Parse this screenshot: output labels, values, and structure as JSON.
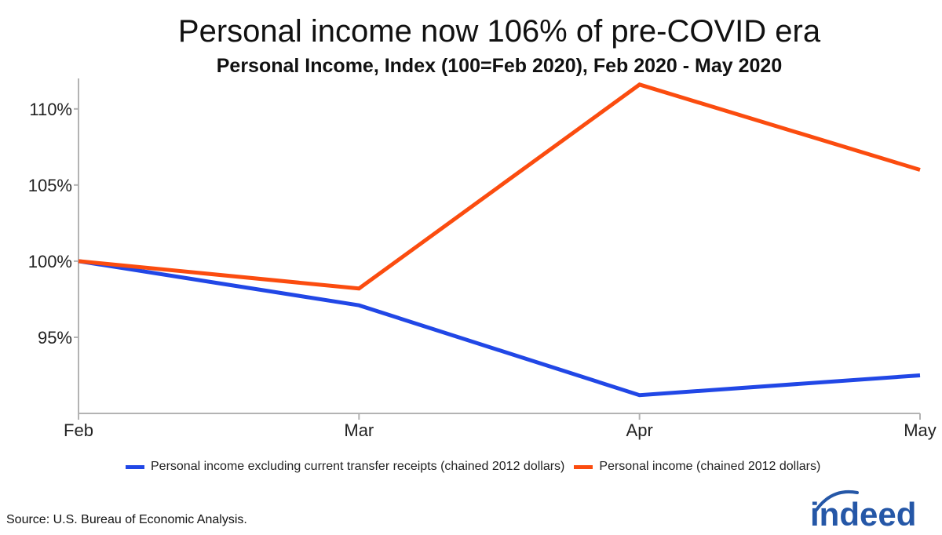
{
  "chart_data": {
    "type": "line",
    "title": "Personal income now 106% of pre-COVID era",
    "subtitle": "Personal Income, Index (100=Feb 2020), Feb 2020 - May 2020",
    "categories": [
      "Feb",
      "Mar",
      "Apr",
      "May"
    ],
    "y_ticks": [
      95,
      100,
      105,
      110
    ],
    "y_tick_format": "%",
    "ylim": [
      90,
      112
    ],
    "grid": false,
    "legend_placement": "bottom",
    "series": [
      {
        "name": "Personal income excluding current transfer receipts (chained 2012 dollars)",
        "color": "#2147e6",
        "values": [
          100,
          97.1,
          91.2,
          92.5
        ]
      },
      {
        "name": "Personal income (chained 2012 dollars)",
        "color": "#fb4c0f",
        "values": [
          100,
          98.2,
          111.6,
          106.0
        ]
      }
    ]
  },
  "source": "Source: U.S. Bureau of Economic Analysis.",
  "logo_text": "indeed",
  "colors": {
    "brand": "#2557a7",
    "axis": "#b3b3b3"
  }
}
